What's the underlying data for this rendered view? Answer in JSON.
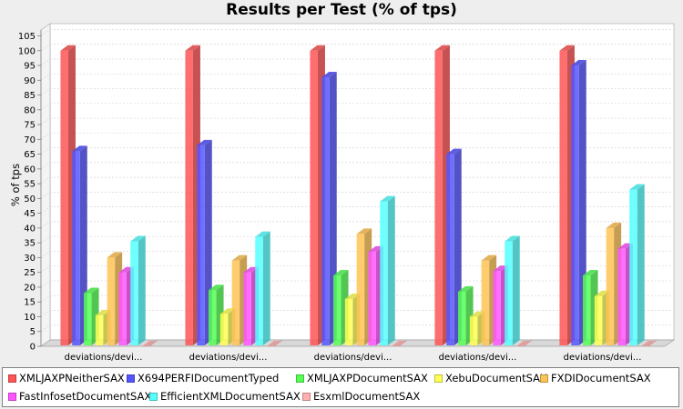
{
  "chart_data": {
    "type": "bar",
    "title": "Results per Test (% of tps)",
    "ylabel": "% of tps",
    "xlabel": "",
    "ylim": [
      0,
      107
    ],
    "yticks": [
      0,
      5,
      10,
      15,
      20,
      25,
      30,
      35,
      40,
      45,
      50,
      55,
      60,
      65,
      70,
      75,
      80,
      85,
      90,
      95,
      100,
      105
    ],
    "grid": true,
    "legend_position": "bottom",
    "categories": [
      "deviations/devi...",
      "deviations/devi...",
      "deviations/devi...",
      "deviations/devi...",
      "deviations/devi..."
    ],
    "series": [
      {
        "name": "XMLJAXPNeitherSAX",
        "color": "#ff5555",
        "values": [
          100,
          100,
          100,
          100,
          100
        ]
      },
      {
        "name": "X694PERFIDocumentTyped",
        "color": "#5555ff",
        "values": [
          66,
          68,
          91,
          65,
          95
        ]
      },
      {
        "name": "XMLJAXPDocumentSAX",
        "color": "#55ff55",
        "values": [
          18,
          19,
          24,
          18.5,
          24
        ]
      },
      {
        "name": "XebuDocumentSAX",
        "color": "#ffff55",
        "values": [
          10.5,
          11,
          16,
          10,
          17
        ]
      },
      {
        "name": "FXDIDocumentSAX",
        "color": "#ffc355",
        "values": [
          30,
          29,
          38,
          29,
          40
        ]
      },
      {
        "name": "FastInfosetDocumentSAX",
        "color": "#ff55ff",
        "values": [
          25,
          25,
          32,
          25.5,
          33
        ]
      },
      {
        "name": "EfficientXMLDocumentSAX",
        "color": "#55ffff",
        "values": [
          35.5,
          37,
          49,
          35.5,
          53
        ]
      },
      {
        "name": "EsxmlDocumentSAX",
        "color": "#ffafaf",
        "values": [
          0,
          0,
          0,
          0,
          0
        ]
      }
    ]
  }
}
